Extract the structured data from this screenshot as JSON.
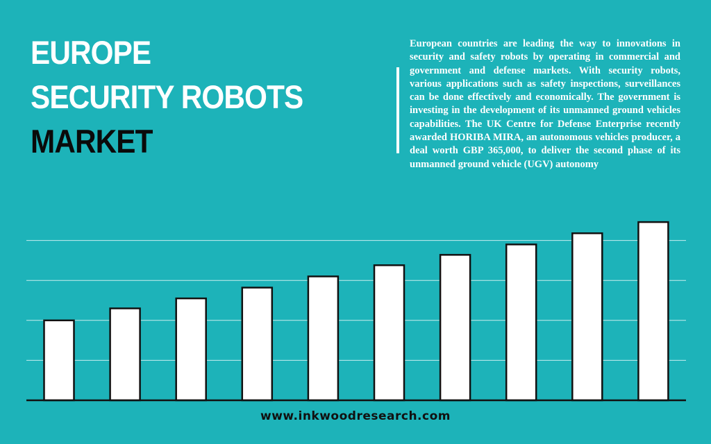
{
  "title": {
    "line1": "EUROPE",
    "line2": "SECURITY ROBOTS",
    "line3": "MARKET"
  },
  "description": "European countries are leading the way to innova­tions in security and safety robots by operating in commercial and government and defense markets. With security robots, various applications such as safety inspections, surveillances can be done effec­tively and economically. The government is invest­ing in the development of its unmanned ground vehicles capabilities. The UK Centre for Defense Enterprise recently awarded HORIBA MIRA, an autonomous vehicles producer, a deal worth GBP 365,000, to deliver the second phase of its unmanned ground vehicle (UGV) autonomy",
  "footer": {
    "website": "www.inkwoodresearch.com"
  },
  "colors": {
    "background": "#1db3b9",
    "bar_fill": "#ffffff",
    "bar_stroke": "#111111",
    "gridline": "#e6f7f8"
  },
  "chart_data": {
    "type": "bar",
    "values": [
      20,
      23,
      25.5,
      28.2,
      31,
      33.8,
      36.4,
      39,
      41.8,
      44.6
    ],
    "ylim": [
      0,
      50
    ],
    "grid": true,
    "gridlines": [
      10,
      20,
      30,
      40
    ],
    "legend": "none",
    "title": "",
    "xlabel": "",
    "ylabel": ""
  }
}
